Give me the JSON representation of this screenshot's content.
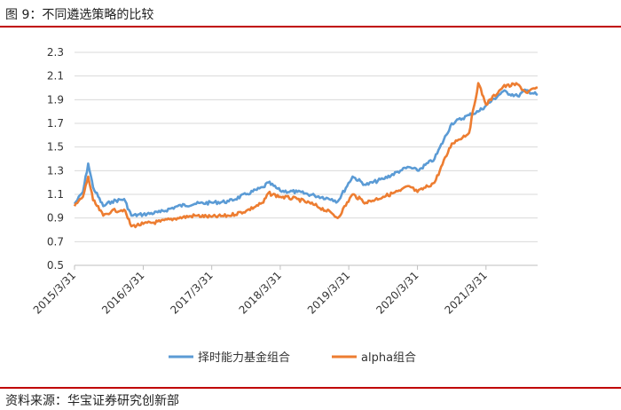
{
  "figure": {
    "title": "图 9：不同遴选策略的比较",
    "source": "资料来源：华宝证券研究创新部"
  },
  "chart_data": {
    "type": "line",
    "title": "",
    "xlabel": "",
    "ylabel": "",
    "ylim": [
      0.5,
      2.3
    ],
    "yticks": [
      "0.5",
      "0.7",
      "0.9",
      "1.1",
      "1.3",
      "1.5",
      "1.7",
      "1.9",
      "2.1",
      "2.3"
    ],
    "xticks": [
      "2015/3/31",
      "2016/3/31",
      "2017/3/31",
      "2018/3/31",
      "2019/3/31",
      "2020/3/31",
      "2021/3/31"
    ],
    "grid": "horizontal",
    "legend": "bottom",
    "x": [
      "2015-03-31",
      "2015-05-15",
      "2015-06-12",
      "2015-07-08",
      "2015-08-31",
      "2015-10-15",
      "2015-12-20",
      "2016-01-28",
      "2016-03-31",
      "2016-06-30",
      "2016-09-30",
      "2016-12-31",
      "2017-03-31",
      "2017-06-30",
      "2017-09-30",
      "2017-12-31",
      "2018-01-26",
      "2018-03-31",
      "2018-06-30",
      "2018-09-30",
      "2018-12-31",
      "2019-01-31",
      "2019-04-20",
      "2019-06-30",
      "2019-09-30",
      "2019-12-31",
      "2020-02-15",
      "2020-03-31",
      "2020-06-30",
      "2020-09-30",
      "2020-12-31",
      "2021-02-18",
      "2021-03-31",
      "2021-06-30",
      "2021-09-15",
      "2021-10-31",
      "2021-12-31"
    ],
    "series": [
      {
        "name": "择时能力基金组合",
        "color": "#5b9bd5",
        "values": [
          1.02,
          1.12,
          1.36,
          1.16,
          1.0,
          1.04,
          1.06,
          0.92,
          0.93,
          0.95,
          1.0,
          1.02,
          1.03,
          1.04,
          1.1,
          1.16,
          1.2,
          1.13,
          1.12,
          1.09,
          1.06,
          1.04,
          1.25,
          1.18,
          1.23,
          1.3,
          1.33,
          1.3,
          1.4,
          1.7,
          1.77,
          1.8,
          1.85,
          1.97,
          1.93,
          1.98,
          1.94
        ]
      },
      {
        "name": "alpha组合",
        "color": "#ed7d31",
        "values": [
          1.0,
          1.08,
          1.25,
          1.05,
          0.92,
          0.96,
          0.97,
          0.83,
          0.85,
          0.87,
          0.9,
          0.92,
          0.91,
          0.92,
          0.96,
          1.03,
          1.11,
          1.08,
          1.06,
          1.01,
          0.94,
          0.9,
          1.1,
          1.03,
          1.08,
          1.13,
          1.17,
          1.12,
          1.2,
          1.53,
          1.62,
          2.04,
          1.86,
          2.01,
          2.03,
          1.96,
          2.0
        ]
      }
    ]
  }
}
